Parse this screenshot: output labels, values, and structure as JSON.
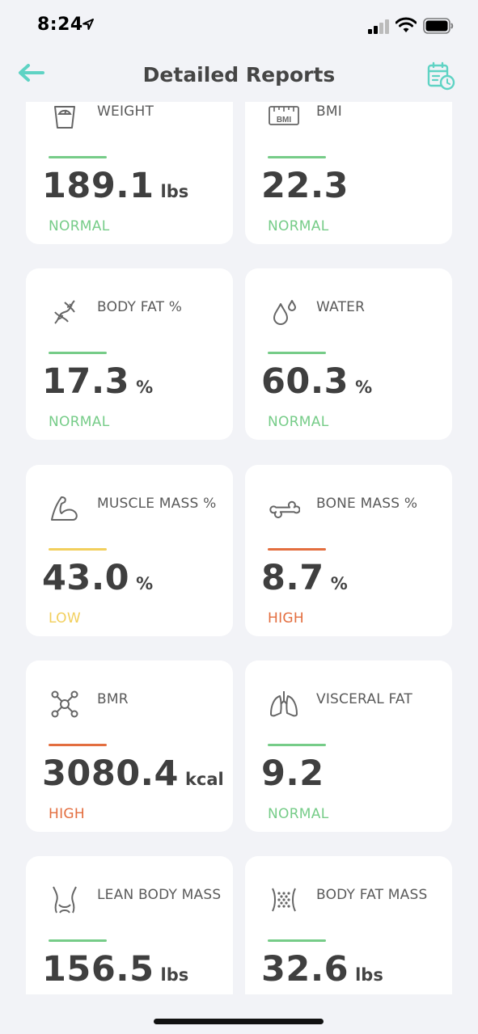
{
  "status_bar": {
    "time": "8:24"
  },
  "header": {
    "title": "Detailed Reports"
  },
  "colors": {
    "accent": "#5fd3c4",
    "normal": "#76cc88",
    "low": "#f2cf5c",
    "high": "#e36e3f"
  },
  "cards": [
    {
      "title": "WEIGHT",
      "value": "189.1",
      "unit": "lbs",
      "status": "NORMAL",
      "icon": "scale-icon"
    },
    {
      "title": "BMI",
      "value": "22.3",
      "unit": "",
      "status": "NORMAL",
      "icon": "bmi-ruler-icon"
    },
    {
      "title": "BODY FAT %",
      "value": "17.3",
      "unit": "%",
      "status": "NORMAL",
      "icon": "dna-icon"
    },
    {
      "title": "WATER",
      "value": "60.3",
      "unit": "%",
      "status": "NORMAL",
      "icon": "water-drops-icon"
    },
    {
      "title": "MUSCLE MASS %",
      "value": "43.0",
      "unit": "%",
      "status": "LOW",
      "icon": "muscle-arm-icon"
    },
    {
      "title": "BONE MASS %",
      "value": "8.7",
      "unit": "%",
      "status": "HIGH",
      "icon": "bone-icon"
    },
    {
      "title": "BMR",
      "value": "3080.4",
      "unit": "kcal",
      "status": "HIGH",
      "icon": "molecule-icon"
    },
    {
      "title": "VISCERAL FAT",
      "value": "9.2",
      "unit": "",
      "status": "NORMAL",
      "icon": "lungs-icon"
    },
    {
      "title": "LEAN BODY MASS",
      "value": "156.5",
      "unit": "lbs",
      "status": "",
      "icon": "torso-icon"
    },
    {
      "title": "BODY FAT MASS",
      "value": "32.6",
      "unit": "lbs",
      "status": "",
      "icon": "fat-cells-icon"
    }
  ]
}
